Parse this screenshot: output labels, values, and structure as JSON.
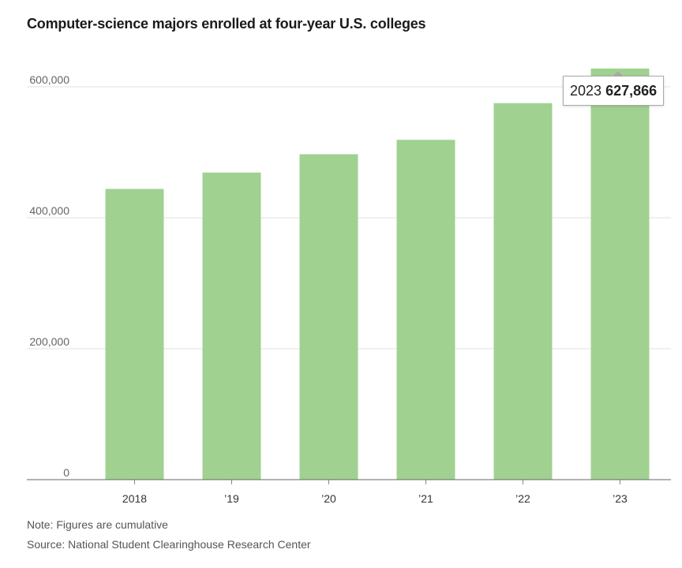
{
  "chart_data": {
    "type": "bar",
    "title": "Computer-science majors enrolled at four-year U.S. colleges",
    "categories": [
      "2018",
      "’19",
      "’20",
      "’21",
      "’22",
      "’23"
    ],
    "values": [
      444000,
      469000,
      497000,
      519000,
      575000,
      627866
    ],
    "ylim": [
      0,
      600000
    ],
    "yticks": [
      0,
      200000,
      400000,
      600000
    ],
    "ytick_labels": [
      "0",
      "200,000",
      "400,000",
      "600,000"
    ],
    "bar_color": "#a0d191",
    "grid": true,
    "tooltip": {
      "year": "2023",
      "value": "627,866"
    },
    "note": "Note: Figures are cumulative",
    "source": "Source: National Student Clearinghouse Research Center"
  }
}
